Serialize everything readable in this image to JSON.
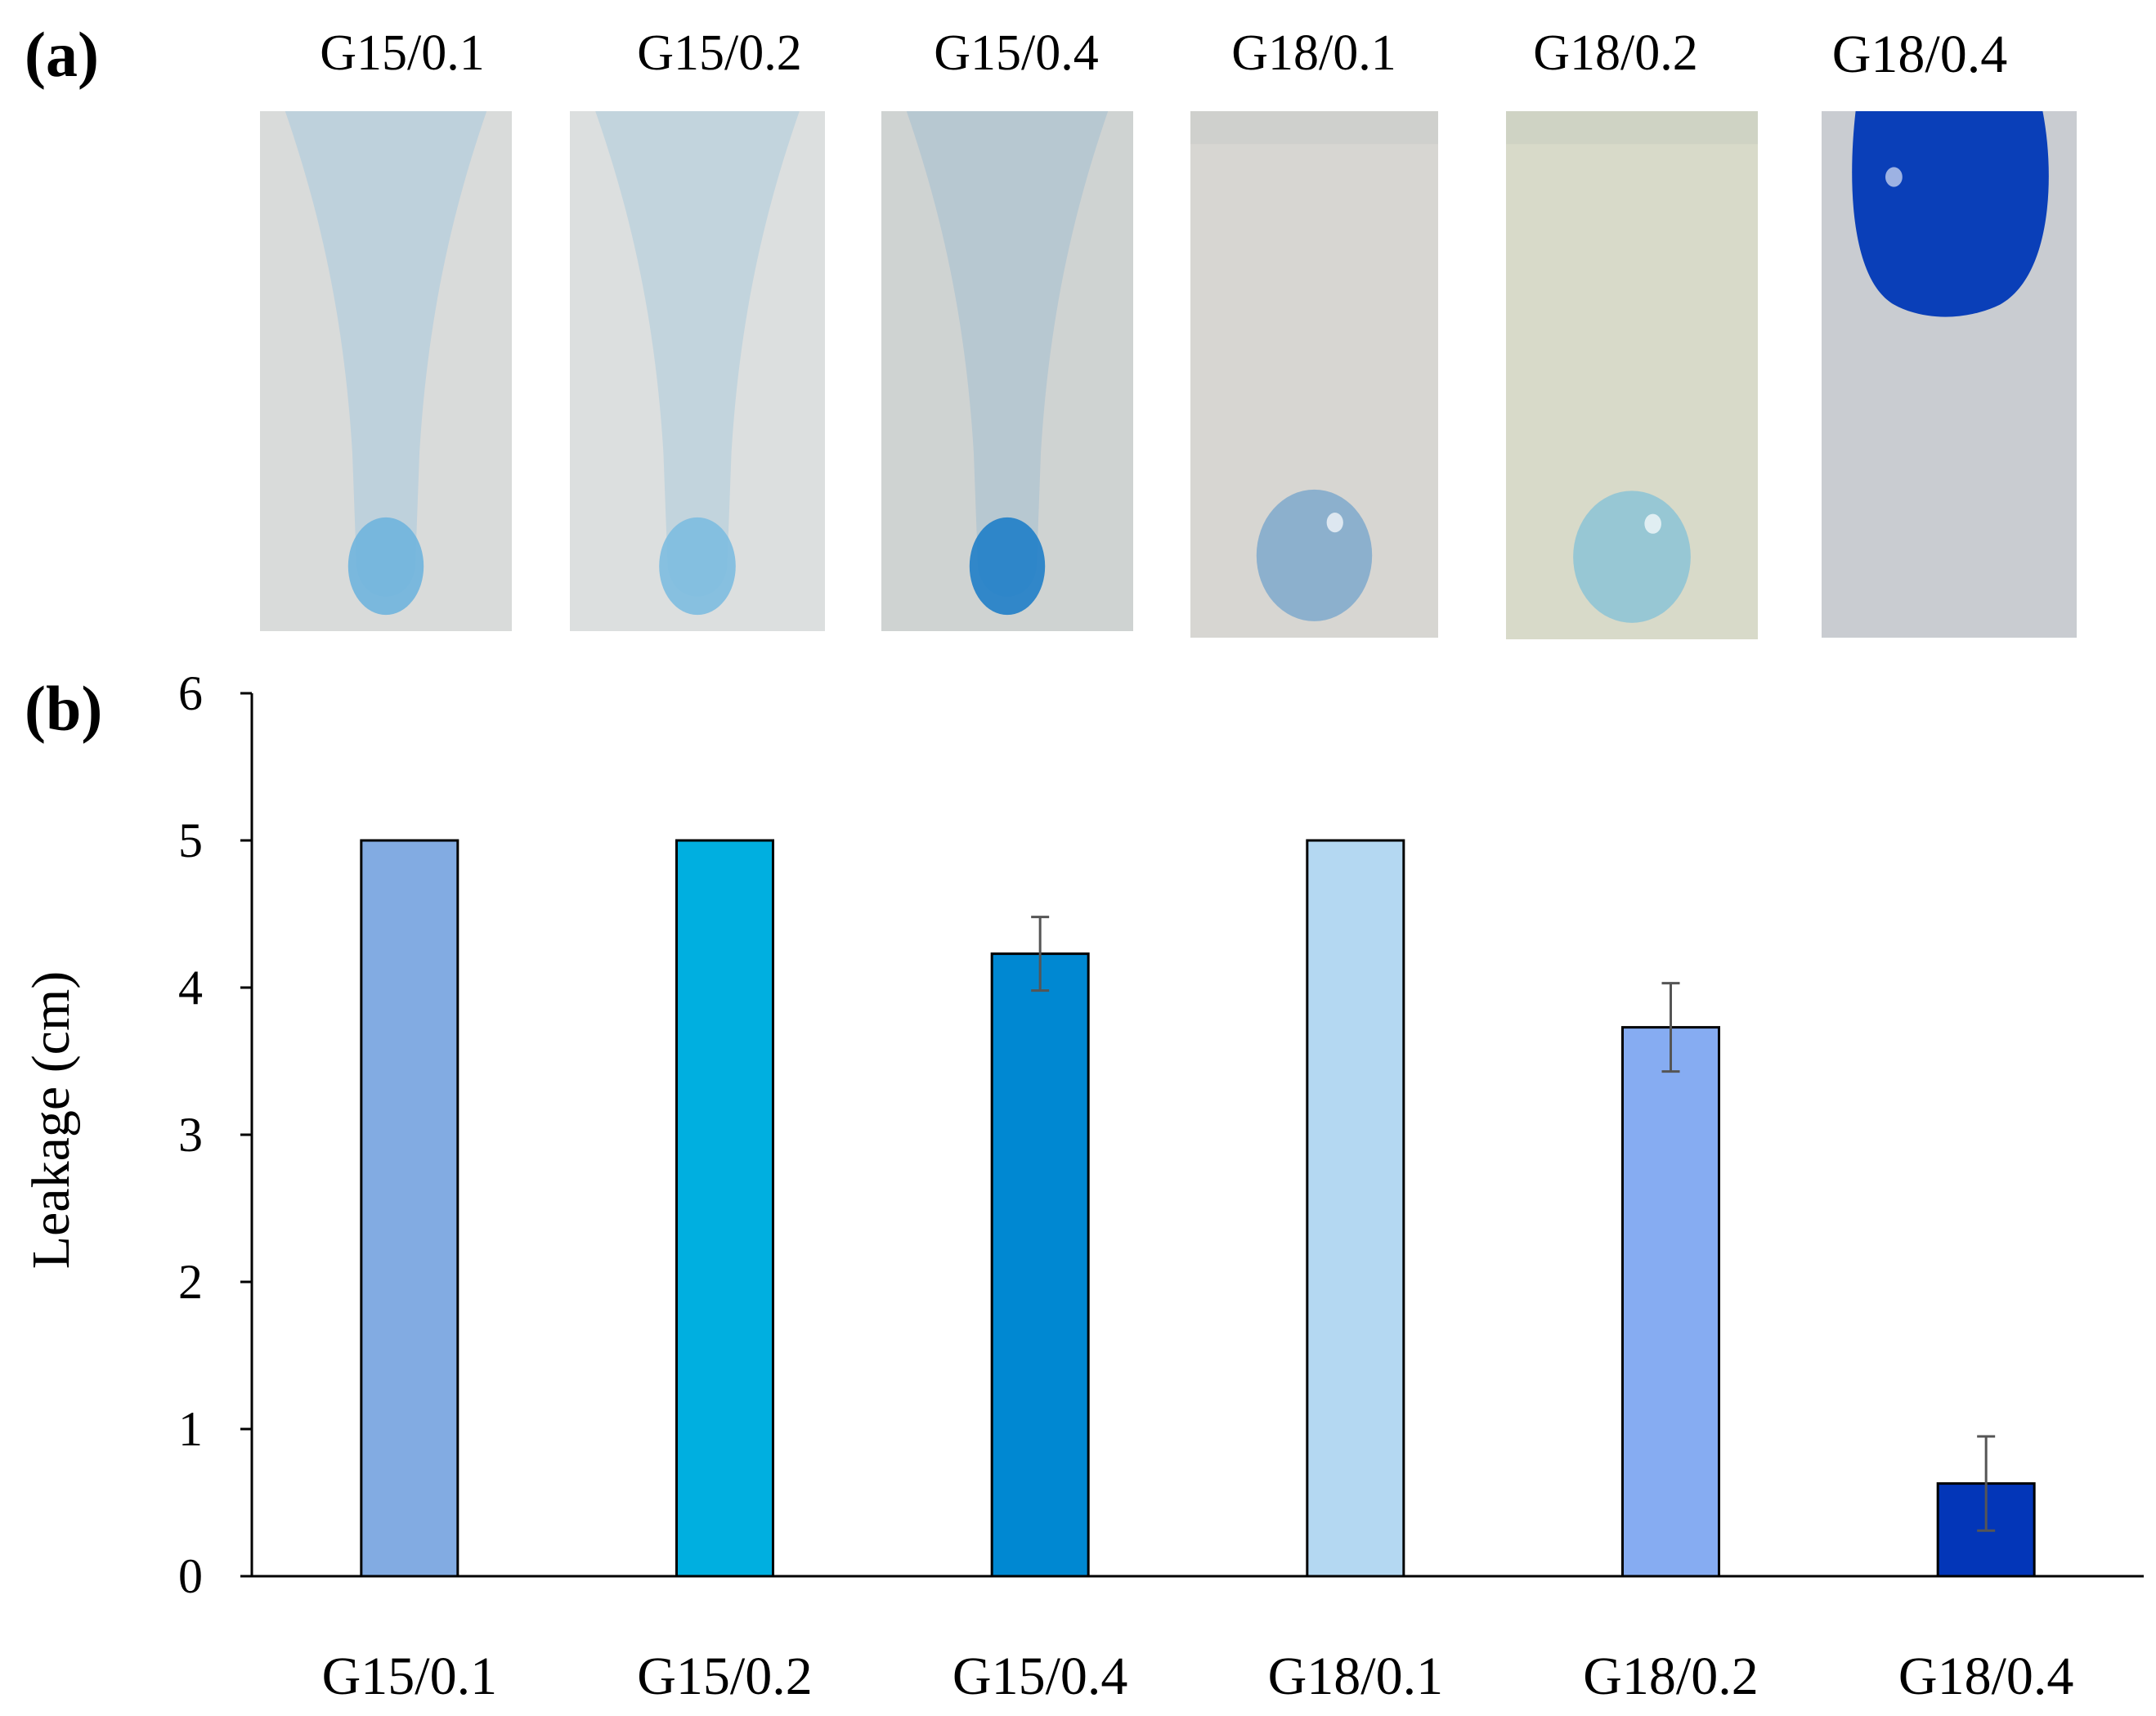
{
  "panels": {
    "a_label": "(a)",
    "b_label": "(b)"
  },
  "photos": [
    {
      "title": "G15/0.1",
      "bg": "#d9dbda",
      "trail": "#b9cfdc",
      "drop": "#6fb4dd",
      "kind": "trail"
    },
    {
      "title": "G15/0.2",
      "bg": "#dcdfdf",
      "trail": "#bdd2dd",
      "drop": "#7dbde0",
      "kind": "trail"
    },
    {
      "title": "G15/0.4",
      "bg": "#cfd3d2",
      "trail": "#b3c6d1",
      "drop": "#1f7ec8",
      "kind": "trail"
    },
    {
      "title": "G18/0.1",
      "bg": "#d7d6d2",
      "trail": "#cfd0cd",
      "drop": "#7fa9cc",
      "kind": "blob"
    },
    {
      "title": "G18/0.2",
      "bg": "#d8dac9",
      "trail": "#cfd3c4",
      "drop": "#8cc3d6",
      "kind": "blob"
    },
    {
      "title": "G18/0.4",
      "bg": "#c9ccd1",
      "trail": "#c3c7cd",
      "drop": "#0a3fb8",
      "kind": "top"
    }
  ],
  "chart_data": {
    "type": "bar",
    "title": "",
    "xlabel": "",
    "ylabel": "Leakage (cm)",
    "ylim": [
      0,
      6
    ],
    "yticks": [
      0,
      1,
      2,
      3,
      4,
      5,
      6
    ],
    "grid": false,
    "categories": [
      "G15/0.1",
      "G15/0.2",
      "G15/0.4",
      "G18/0.1",
      "G18/0.2",
      "G18/0.4"
    ],
    "values": [
      5.0,
      5.0,
      4.23,
      5.0,
      3.73,
      0.63
    ],
    "errors": [
      0,
      0,
      0.25,
      0,
      0.3,
      0.32
    ],
    "colors": [
      "#82abe2",
      "#00afe0",
      "#0088d2",
      "#b4d8f2",
      "#86acf2",
      "#0336b8"
    ]
  }
}
